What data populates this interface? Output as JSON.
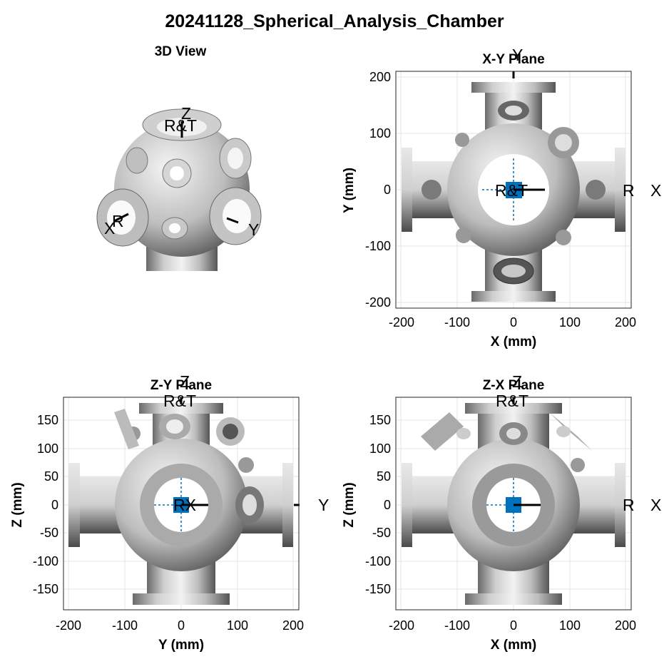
{
  "figure": {
    "title": "20241128_Spherical_Analysis_Chamber"
  },
  "colors": {
    "marker": "#0072BD",
    "frame": "#262626",
    "grid": "#e6e6e6",
    "metal_light": "#e0e0e0",
    "metal_dark": "#5a5a5a"
  },
  "view3d": {
    "title": "3D View",
    "labels": {
      "z": "Z",
      "rt": "R&T",
      "x": "X",
      "r": "R",
      "y": "Y"
    }
  },
  "xy": {
    "title": "X-Y Plane",
    "xlabel": "X (mm)",
    "ylabel": "Y (mm)",
    "xticks": [
      "-200",
      "-100",
      "0",
      "100",
      "200"
    ],
    "yticks": [
      "200",
      "100",
      "0",
      "-100",
      "-200"
    ],
    "labels": {
      "top": "Y",
      "center": "R&T",
      "r": "R",
      "x": "X"
    }
  },
  "zy": {
    "title": "Z-Y Plane",
    "xlabel": "Y (mm)",
    "ylabel": "Z (mm)",
    "xticks": [
      "-200",
      "-100",
      "0",
      "100",
      "200"
    ],
    "yticks": [
      "150",
      "100",
      "50",
      "0",
      "-50",
      "-100",
      "-150"
    ],
    "labels": {
      "top": "Z",
      "rt": "R&T",
      "center": "RX",
      "y": "Y"
    }
  },
  "zx": {
    "title": "Z-X Plane",
    "xlabel": "X (mm)",
    "ylabel": "Z (mm)",
    "xticks": [
      "-200",
      "-100",
      "0",
      "100",
      "200"
    ],
    "yticks": [
      "150",
      "100",
      "50",
      "0",
      "-50",
      "-100",
      "-150"
    ],
    "labels": {
      "top": "Z",
      "rt": "R&T",
      "r": "R",
      "x": "X"
    }
  }
}
